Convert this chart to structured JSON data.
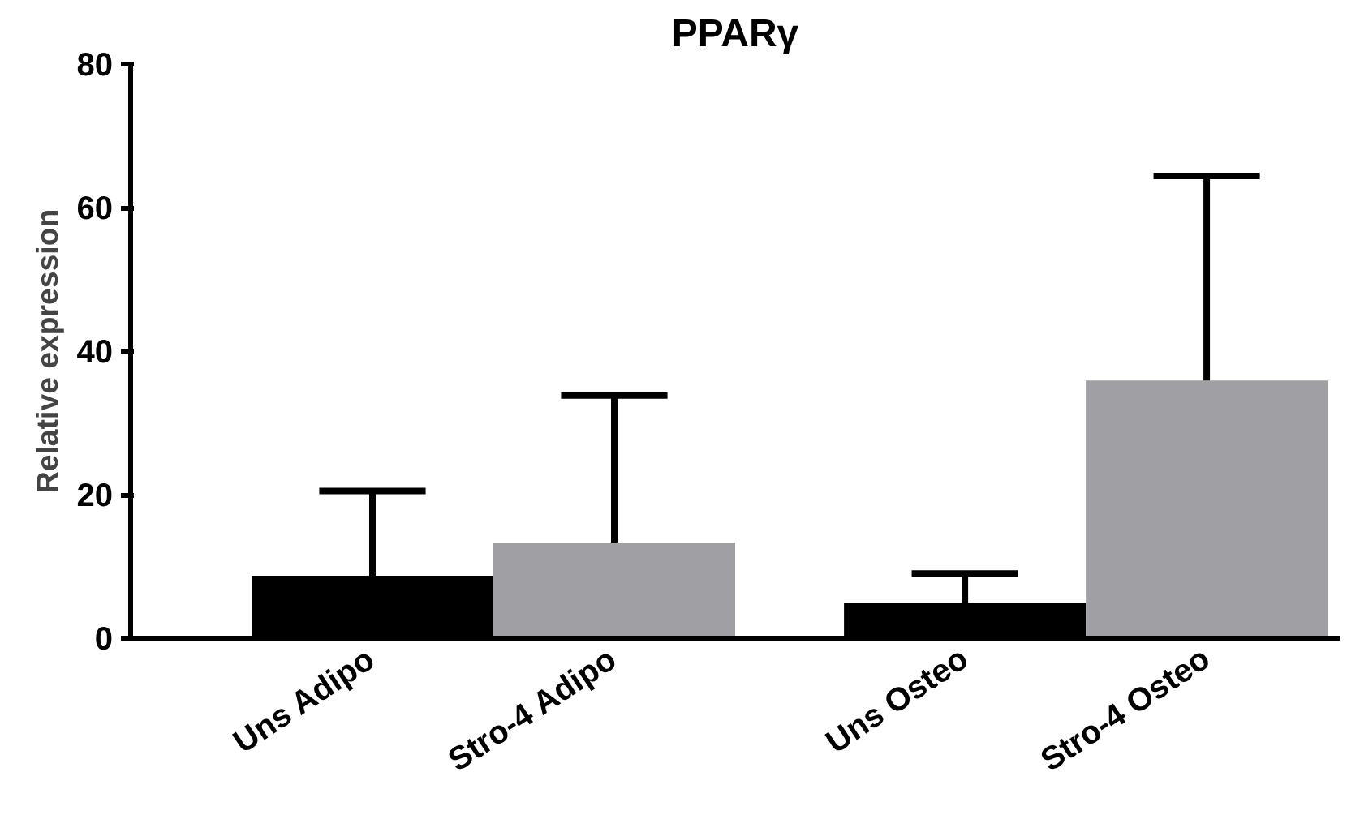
{
  "chart_data": {
    "type": "bar",
    "title": "PPARγ",
    "ylabel": "Relative expression",
    "categories": [
      "Uns Adipo",
      "Stro-4 Adipo",
      "Uns Osteo",
      "Stro-4 Osteo"
    ],
    "values": [
      8.7,
      13.3,
      4.9,
      35.9
    ],
    "colors": [
      "#000000",
      "#a09fa3",
      "#000000",
      "#a09fa3"
    ],
    "errors": [
      [
        8.7,
        20.5
      ],
      [
        13.3,
        33.8
      ],
      [
        4.9,
        9.0
      ],
      [
        35.9,
        64.4
      ]
    ],
    "ylim": [
      0,
      80
    ],
    "yticks": [
      0,
      20,
      40,
      60,
      80
    ],
    "grid": false
  }
}
